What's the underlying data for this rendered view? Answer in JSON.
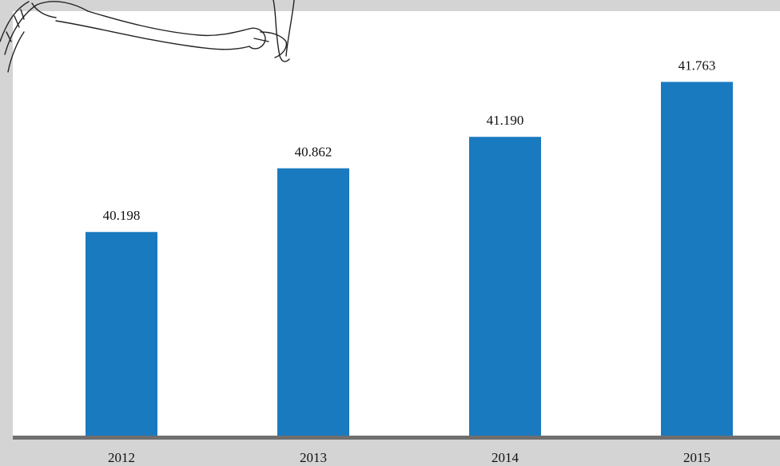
{
  "colors": {
    "bar": "#1a7abf",
    "frame": "#d4d4d4",
    "baseline": "#6f6f6f",
    "sketch": "#222222",
    "background": "#ffffff"
  },
  "decoration": {
    "illustration": "hand-drawn-pointing-hand"
  },
  "chart_data": {
    "type": "bar",
    "categories": [
      "2012",
      "2013",
      "2014",
      "2015"
    ],
    "values": [
      40.198,
      40.862,
      41.19,
      41.763
    ],
    "data_labels": [
      "40.198",
      "40.862",
      "41.190",
      "41.763"
    ],
    "title": "",
    "xlabel": "",
    "ylabel": "",
    "ylim": [
      38.05,
      42.5
    ],
    "grid": false,
    "legend": "none"
  }
}
